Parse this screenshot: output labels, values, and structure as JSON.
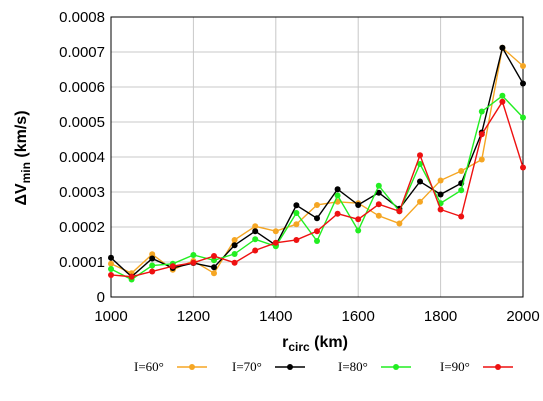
{
  "chart_data": {
    "type": "line",
    "xlabel_main": "r",
    "xlabel_sub": "circ",
    "xlabel_unit": " (km)",
    "ylabel_prefix": "ΔV",
    "ylabel_sub": "min",
    "ylabel_unit": " (km/s)",
    "xlim": [
      1000,
      2000
    ],
    "ylim": [
      0,
      0.0008
    ],
    "x_ticks": [
      1000,
      1200,
      1400,
      1600,
      1800,
      2000
    ],
    "x_tick_labels": [
      "1000",
      "1200",
      "1400",
      "1600",
      "1800",
      "2000"
    ],
    "y_ticks": [
      0,
      0.0001,
      0.0002,
      0.0003,
      0.0004,
      0.0005,
      0.0006,
      0.0007,
      0.0008
    ],
    "y_tick_labels": [
      "0",
      "0.0001",
      "0.0002",
      "0.0003",
      "0.0004",
      "0.0005",
      "0.0006",
      "0.0007",
      "0.0008"
    ],
    "grid": true,
    "legend_position": "bottom",
    "x": [
      1000,
      1050,
      1100,
      1150,
      1200,
      1250,
      1300,
      1350,
      1400,
      1450,
      1500,
      1550,
      1600,
      1650,
      1700,
      1750,
      1800,
      1850,
      1900,
      1950,
      2000
    ],
    "series": [
      {
        "name": "I=60°",
        "color": "#f5a623",
        "values": [
          9.5e-05,
          6.8e-05,
          0.000122,
          7.8e-05,
          0.000103,
          6.8e-05,
          0.000163,
          0.000202,
          0.000188,
          0.000208,
          0.000263,
          0.000272,
          0.000268,
          0.000232,
          0.00021,
          0.000272,
          0.000333,
          0.00036,
          0.000393,
          0.000712,
          0.00066
        ]
      },
      {
        "name": "I=70°",
        "color": "#000000",
        "values": [
          0.000112,
          5.8e-05,
          0.00011,
          8.3e-05,
          9.7e-05,
          8.5e-05,
          0.000148,
          0.000188,
          0.000148,
          0.000262,
          0.000225,
          0.000308,
          0.000263,
          0.000298,
          0.000252,
          0.00033,
          0.000293,
          0.000325,
          0.00047,
          0.000712,
          0.00061
        ]
      },
      {
        "name": "I=80°",
        "color": "#22ee22",
        "values": [
          8e-05,
          5e-05,
          9e-05,
          9.5e-05,
          0.00012,
          0.000105,
          0.000123,
          0.000165,
          0.000145,
          0.00024,
          0.00016,
          0.00029,
          0.00019,
          0.000318,
          0.000245,
          0.00038,
          0.000268,
          0.000305,
          0.00053,
          0.000575,
          0.000513
        ]
      },
      {
        "name": "I=90°",
        "color": "#ee1111",
        "values": [
          6.3e-05,
          5.8e-05,
          7.3e-05,
          8.8e-05,
          9.8e-05,
          0.000117,
          9.8e-05,
          0.000133,
          0.000155,
          0.000163,
          0.000188,
          0.000238,
          0.000222,
          0.000265,
          0.000245,
          0.000405,
          0.00025,
          0.00023,
          0.000465,
          0.000558,
          0.00037
        ]
      }
    ]
  }
}
